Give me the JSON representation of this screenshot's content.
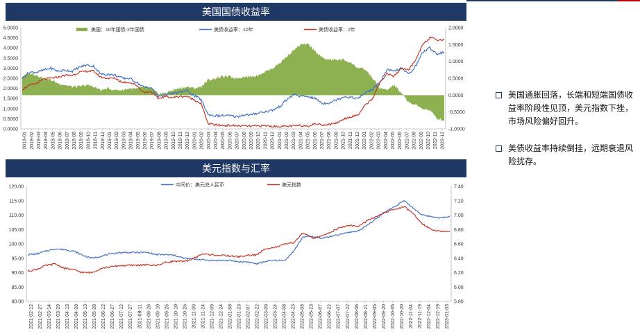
{
  "panels": {
    "top_title": "美国国债收益率",
    "bottom_title": "美元指数与汇率"
  },
  "notes": [
    "美国通胀回落，长端和短端国债收益率阶段性见顶，美元指数下挫，市场风险偏好回升。",
    "美债收益率持续倒挂，远期衰退风险扰存。"
  ],
  "colors": {
    "navy": "#1f3864",
    "blue": "#4472c4",
    "red": "#c0392b",
    "green": "#8db150"
  },
  "chart_data": [
    {
      "type": "line",
      "title": "美国国债收益率",
      "x_labels": [
        "2018-01",
        "2018-02",
        "2018-03",
        "2018-04",
        "2018-05",
        "2018-06",
        "2018-07",
        "2018-08",
        "2018-09",
        "2018-10",
        "2018-11",
        "2018-12",
        "2019-01",
        "2019-02",
        "2019-03",
        "2019-04",
        "2019-05",
        "2019-06",
        "2019-07",
        "2019-08",
        "2019-09",
        "2019-10",
        "2019-11",
        "2019-12",
        "2020-01",
        "2020-02",
        "2020-03",
        "2020-04",
        "2020-05",
        "2020-06",
        "2020-07",
        "2020-08",
        "2020-09",
        "2020-10",
        "2020-11",
        "2020-12",
        "2021-01",
        "2021-02",
        "2021-03",
        "2021-04",
        "2021-05",
        "2021-06",
        "2021-07",
        "2021-08",
        "2021-09",
        "2021-10",
        "2021-11",
        "2021-12",
        "2022-01",
        "2022-02",
        "2022-03",
        "2022-04",
        "2022-05",
        "2022-06",
        "2022-07",
        "2022-08",
        "2022-09",
        "2022-10",
        "2022-11",
        "2022-12"
      ],
      "y_left_range": [
        0,
        5
      ],
      "y_left_ticks": [
        "5.0000",
        "4.5000",
        "4.0000",
        "3.5000",
        "3.0000",
        "2.5000",
        "2.0000",
        "1.5000",
        "1.0000",
        "0.5000",
        "0.0000"
      ],
      "y_right_range": [
        -1,
        2
      ],
      "y_right_ticks": [
        "2.0000",
        "1.5000",
        "1.0000",
        "0.5000",
        "0.0000",
        "-0.5000",
        "-1.0000"
      ],
      "series": [
        {
          "name": "美国：10年国债-2年国债",
          "kind": "area",
          "axis": "right",
          "color": "#8db150",
          "values": [
            0.55,
            0.65,
            0.6,
            0.5,
            0.45,
            0.35,
            0.3,
            0.25,
            0.25,
            0.3,
            0.25,
            0.15,
            0.2,
            0.15,
            0.15,
            0.2,
            0.18,
            0.25,
            0.2,
            0.05,
            0.05,
            0.15,
            0.2,
            0.25,
            0.2,
            0.25,
            0.45,
            0.5,
            0.55,
            0.55,
            0.5,
            0.55,
            0.55,
            0.6,
            0.7,
            0.8,
            0.95,
            1.15,
            1.35,
            1.5,
            1.5,
            1.3,
            1.1,
            1.05,
            1.05,
            1.05,
            0.95,
            0.8,
            0.75,
            0.5,
            0.2,
            0.15,
            0.3,
            0.05,
            -0.2,
            -0.3,
            -0.4,
            -0.45,
            -0.7,
            -0.75
          ]
        },
        {
          "name": "美债收益率：10年",
          "kind": "line",
          "axis": "left",
          "color": "#4472c4",
          "values": [
            2.5,
            2.8,
            2.8,
            2.9,
            3.0,
            2.85,
            2.9,
            2.85,
            3.05,
            3.15,
            3.1,
            2.7,
            2.7,
            2.65,
            2.5,
            2.5,
            2.3,
            2.05,
            2.05,
            1.6,
            1.7,
            1.75,
            1.8,
            1.9,
            1.65,
            1.45,
            0.7,
            0.65,
            0.65,
            0.65,
            0.6,
            0.7,
            0.68,
            0.8,
            0.85,
            0.92,
            1.1,
            1.45,
            1.7,
            1.6,
            1.6,
            1.5,
            1.25,
            1.3,
            1.45,
            1.6,
            1.55,
            1.5,
            1.8,
            1.95,
            2.3,
            2.9,
            2.85,
            3.0,
            2.7,
            3.1,
            3.8,
            4.0,
            3.7,
            3.8
          ]
        },
        {
          "name": "美债收益率：2年",
          "kind": "line",
          "axis": "left",
          "color": "#c0392b",
          "values": [
            1.95,
            2.15,
            2.25,
            2.45,
            2.5,
            2.55,
            2.65,
            2.65,
            2.8,
            2.85,
            2.85,
            2.55,
            2.5,
            2.5,
            2.3,
            2.3,
            2.15,
            1.8,
            1.85,
            1.5,
            1.6,
            1.55,
            1.6,
            1.6,
            1.45,
            1.25,
            0.25,
            0.2,
            0.17,
            0.17,
            0.15,
            0.14,
            0.13,
            0.14,
            0.16,
            0.12,
            0.12,
            0.12,
            0.15,
            0.16,
            0.15,
            0.25,
            0.2,
            0.22,
            0.3,
            0.5,
            0.6,
            0.7,
            1.2,
            1.5,
            2.3,
            2.7,
            2.6,
            3.0,
            2.9,
            3.4,
            4.2,
            4.5,
            4.4,
            4.4
          ]
        }
      ]
    },
    {
      "type": "line",
      "title": "美元指数与汇率",
      "x_labels": [
        "2021-02-12",
        "2021-02-27",
        "2021-03-14",
        "2021-03-29",
        "2021-04-13",
        "2021-04-28",
        "2021-05-13",
        "2021-05-28",
        "2021-06-12",
        "2021-06-27",
        "2021-07-12",
        "2021-07-27",
        "2021-08-11",
        "2021-08-26",
        "2021-09-10",
        "2021-09-25",
        "2021-10-10",
        "2021-10-25",
        "2021-11-09",
        "2021-11-24",
        "2021-12-09",
        "2021-12-24",
        "2022-01-08",
        "2022-01-23",
        "2022-02-07",
        "2022-02-22",
        "2022-03-09",
        "2022-03-24",
        "2022-04-08",
        "2022-04-23",
        "2022-05-08",
        "2022-05-23",
        "2022-06-07",
        "2022-06-22",
        "2022-07-07",
        "2022-07-22",
        "2022-08-06",
        "2022-08-21",
        "2022-09-05",
        "2022-09-20",
        "2022-10-05",
        "2022-10-20",
        "2022-11-04",
        "2022-11-19",
        "2022-12-04",
        "2022-12-19",
        "2023-01-03"
      ],
      "y_left_range": [
        80,
        120
      ],
      "y_left_ticks": [
        "120.00",
        "115.00",
        "110.00",
        "105.00",
        "100.00",
        "95.00",
        "90.00",
        "85.00",
        "80.00"
      ],
      "y_right_range": [
        5.8,
        7.4
      ],
      "y_right_ticks": [
        "7.40",
        "7.20",
        "7.00",
        "6.80",
        "6.60",
        "6.40",
        "6.20",
        "6.00",
        "5.80"
      ],
      "series": [
        {
          "name": "中间价：美元兑人民币",
          "kind": "line",
          "axis": "right",
          "color": "#4472c4",
          "values": [
            6.45,
            6.46,
            6.5,
            6.53,
            6.52,
            6.5,
            6.44,
            6.4,
            6.43,
            6.46,
            6.48,
            6.48,
            6.48,
            6.48,
            6.45,
            6.45,
            6.44,
            6.4,
            6.39,
            6.38,
            6.37,
            6.37,
            6.37,
            6.35,
            6.35,
            6.32,
            6.36,
            6.37,
            6.37,
            6.5,
            6.7,
            6.7,
            6.68,
            6.7,
            6.73,
            6.76,
            6.78,
            6.86,
            6.95,
            7.05,
            7.12,
            7.2,
            7.1,
            7.0,
            6.98,
            6.96,
            6.98
          ]
        },
        {
          "name": "美元指数",
          "kind": "line",
          "axis": "left",
          "color": "#c0392b",
          "values": [
            90.5,
            91.2,
            92.5,
            93.0,
            91.5,
            91.0,
            90.0,
            90.0,
            91.5,
            92.0,
            92.4,
            92.5,
            92.6,
            92.7,
            92.5,
            93.5,
            94.0,
            93.8,
            94.8,
            96.5,
            96.2,
            96.0,
            95.8,
            95.5,
            96.0,
            96.2,
            98.5,
            98.8,
            99.8,
            100.5,
            103.8,
            102.0,
            102.5,
            104.2,
            105.5,
            106.5,
            106.0,
            108.0,
            109.5,
            111.0,
            112.0,
            113.0,
            110.5,
            107.0,
            105.0,
            104.4,
            104.2
          ]
        }
      ]
    }
  ]
}
